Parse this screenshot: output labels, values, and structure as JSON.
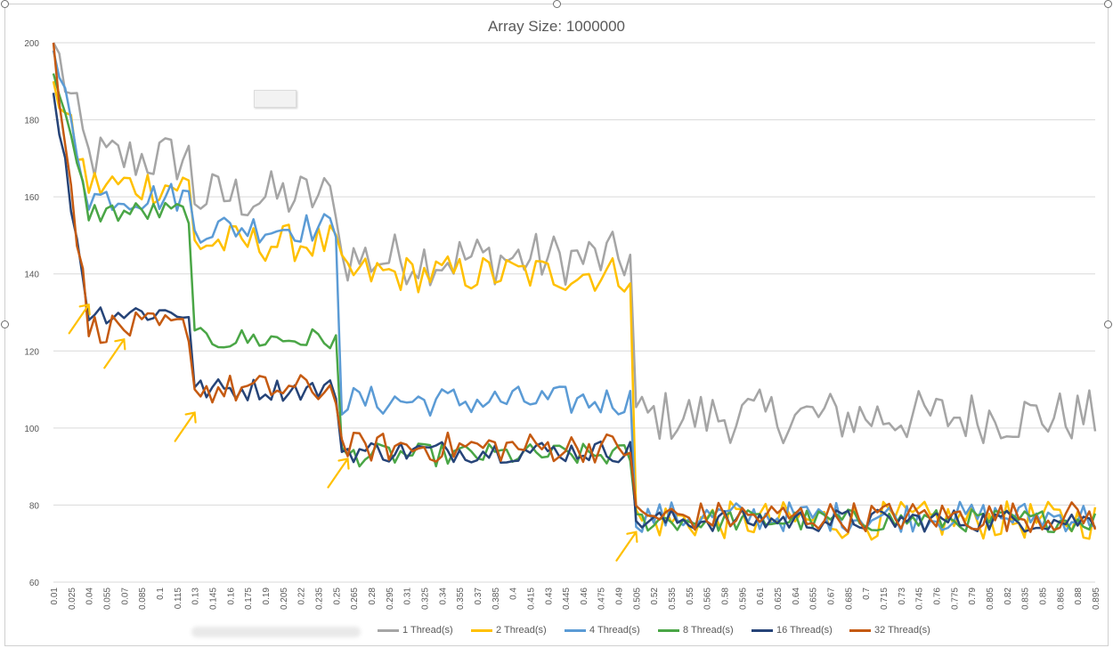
{
  "chart_data": {
    "type": "line",
    "title": "Array Size: 1000000",
    "xlabel": "",
    "ylabel": "",
    "ylim": [
      60,
      200
    ],
    "yticks": [
      60,
      80,
      100,
      120,
      140,
      160,
      180,
      200
    ],
    "x_start": 0.01,
    "x_step": 0.005,
    "x_label_every": 3,
    "grid": "horizontal",
    "legend_position": "bottom",
    "phases": [
      {
        "x_from": 0.01,
        "x_to": 0.125,
        "values": {
          "1 Thread(s)": 170,
          "2 Thread(s)": 163,
          "4 Thread(s)": 160,
          "8 Thread(s)": 156,
          "16 Thread(s)": 130,
          "32 Thread(s)": 126
        }
      },
      {
        "x_from": 0.13,
        "x_to": 0.25,
        "values": {
          "1 Thread(s)": 160,
          "2 Thread(s)": 148,
          "4 Thread(s)": 152,
          "8 Thread(s)": 123,
          "16 Thread(s)": 110,
          "32 Thread(s)": 110
        }
      },
      {
        "x_from": 0.255,
        "x_to": 0.5,
        "values": {
          "1 Thread(s)": 144,
          "2 Thread(s)": 140,
          "4 Thread(s)": 107,
          "8 Thread(s)": 93,
          "16 Thread(s)": 94,
          "32 Thread(s)": 95
        }
      },
      {
        "x_from": 0.505,
        "x_to": 0.895,
        "values": {
          "1 Thread(s)": 103,
          "2 Thread(s)": 76,
          "4 Thread(s)": 77,
          "8 Thread(s)": 76,
          "16 Thread(s)": 76,
          "32 Thread(s)": 77
        }
      }
    ],
    "series": [
      {
        "name": "1 Thread(s)",
        "color": "#a5a5a5",
        "start": 200,
        "noise": 7
      },
      {
        "name": "2 Thread(s)",
        "color": "#ffc000",
        "start": 190,
        "noise": 5
      },
      {
        "name": "4 Thread(s)",
        "color": "#5b9bd5",
        "start": 198,
        "noise": 4
      },
      {
        "name": "8 Thread(s)",
        "color": "#4aa646",
        "start": 192,
        "noise": 3
      },
      {
        "name": "16 Thread(s)",
        "color": "#264478",
        "start": 187,
        "noise": 3
      },
      {
        "name": "32 Thread(s)",
        "color": "#c55a11",
        "start": 200,
        "noise": 4
      }
    ],
    "annotations": {
      "arrows": "yellow",
      "arrow_targets": [
        {
          "x": 0.04,
          "y": 132
        },
        {
          "x": 0.07,
          "y": 123
        },
        {
          "x": 0.13,
          "y": 104
        },
        {
          "x": 0.26,
          "y": 92
        },
        {
          "x": 0.505,
          "y": 73
        }
      ]
    }
  }
}
